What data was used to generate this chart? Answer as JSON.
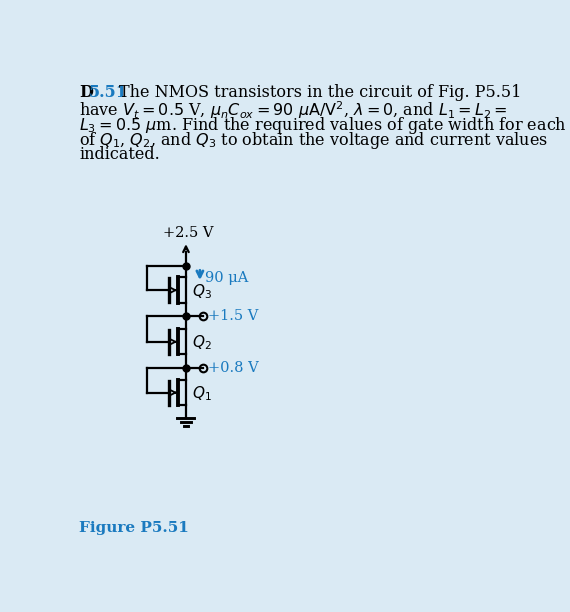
{
  "bg_color": "#daeaf4",
  "title_color": "#1a7abf",
  "figure_label_color": "#1a7abf",
  "current_color": "#1a7abf",
  "v_color": "#1a7abf",
  "vdd_label": "+2.5 V",
  "current_label": "90 μA",
  "v1_label": "+1.5 V",
  "v2_label": "+0.8 V",
  "Q3_label": "Q_3",
  "Q2_label": "Q_2",
  "Q1_label": "Q_1",
  "figure_label": "Figure P5.51",
  "lw": 1.6
}
